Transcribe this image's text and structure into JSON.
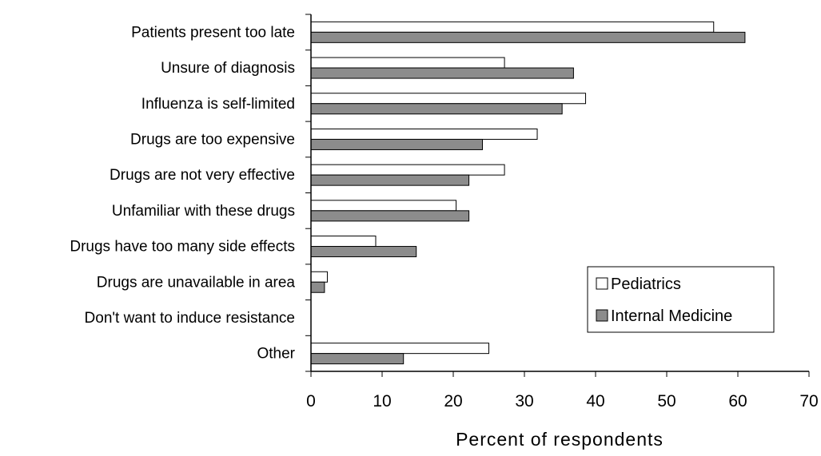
{
  "chart_data": {
    "type": "bar",
    "orientation": "horizontal",
    "categories": [
      "Patients present too late",
      "Unsure of diagnosis",
      "Influenza is self-limited",
      "Drugs are too expensive",
      "Drugs are not very effective",
      "Unfamiliar with these drugs",
      "Drugs have too many side effects",
      "Drugs are unavailable in area",
      "Don't want to induce resistance",
      "Other"
    ],
    "series": [
      {
        "name": "Pediatrics",
        "color": "#ffffff",
        "values": [
          56.6,
          27.2,
          38.6,
          31.8,
          27.2,
          20.4,
          9.1,
          2.3,
          0,
          25.0
        ]
      },
      {
        "name": "Internal Medicine",
        "color": "#8c8c8c",
        "values": [
          61.0,
          36.9,
          35.3,
          24.1,
          22.2,
          22.2,
          14.8,
          1.9,
          0,
          13.0
        ]
      }
    ],
    "xlabel": "Percent of respondents",
    "ylabel": "",
    "xlim": [
      0,
      70
    ],
    "xticks": [
      "0",
      "10",
      "20",
      "30",
      "40",
      "50",
      "60",
      "70"
    ],
    "grid": false,
    "legend_position": "bottom-right"
  }
}
